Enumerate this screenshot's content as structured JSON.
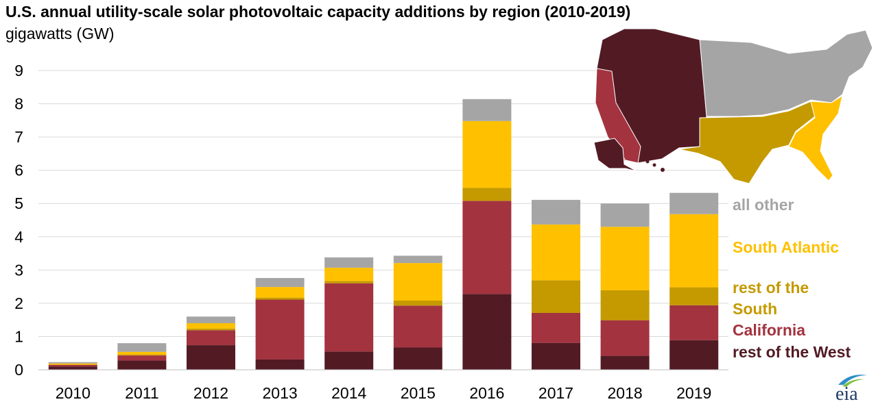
{
  "title": "U.S. annual utility-scale solar photovoltaic capacity additions by region (2010-2019)",
  "unit_label": "gigawatts (GW)",
  "logo_text": "eia",
  "colors": {
    "rest_of_west": "#521b24",
    "california": "#a3333f",
    "rest_of_south": "#c49a00",
    "south_atlantic": "#ffc000",
    "all_other": "#a5a5a5",
    "grid": "#d9d9d9"
  },
  "chart_data": {
    "type": "bar",
    "stacked": true,
    "categories": [
      "2010",
      "2011",
      "2012",
      "2013",
      "2014",
      "2015",
      "2016",
      "2017",
      "2018",
      "2019"
    ],
    "ylim": [
      0,
      9
    ],
    "yticks": [
      "0",
      "1",
      "2",
      "3",
      "4",
      "5",
      "6",
      "7",
      "8",
      "9"
    ],
    "grid": true,
    "legend_position": "right",
    "series": [
      {
        "name": "rest of the West",
        "color": "#521b24",
        "values": [
          0.1,
          0.28,
          0.74,
          0.31,
          0.55,
          0.67,
          2.28,
          0.81,
          0.42,
          0.89
        ]
      },
      {
        "name": "California",
        "color": "#a3333f",
        "values": [
          0.05,
          0.15,
          0.45,
          1.8,
          2.05,
          1.26,
          2.8,
          0.9,
          1.07,
          1.05
        ]
      },
      {
        "name": "rest of the South",
        "color": "#c49a00",
        "values": [
          0.0,
          0.03,
          0.05,
          0.06,
          0.07,
          0.15,
          0.39,
          0.98,
          0.9,
          0.54
        ]
      },
      {
        "name": "South Atlantic",
        "color": "#ffc000",
        "values": [
          0.04,
          0.08,
          0.16,
          0.32,
          0.4,
          1.13,
          2.01,
          1.68,
          1.91,
          2.2
        ]
      },
      {
        "name": "all other",
        "color": "#a5a5a5",
        "values": [
          0.04,
          0.26,
          0.2,
          0.27,
          0.31,
          0.22,
          0.66,
          0.74,
          0.7,
          0.64
        ]
      }
    ]
  },
  "legend": [
    {
      "label": "all other",
      "color": "#a5a5a5"
    },
    {
      "label": "South Atlantic",
      "color": "#ffc000"
    },
    {
      "label": "rest of the South",
      "color": "#c49a00"
    },
    {
      "label": "California",
      "color": "#a3333f"
    },
    {
      "label": "rest of the West",
      "color": "#521b24"
    }
  ]
}
